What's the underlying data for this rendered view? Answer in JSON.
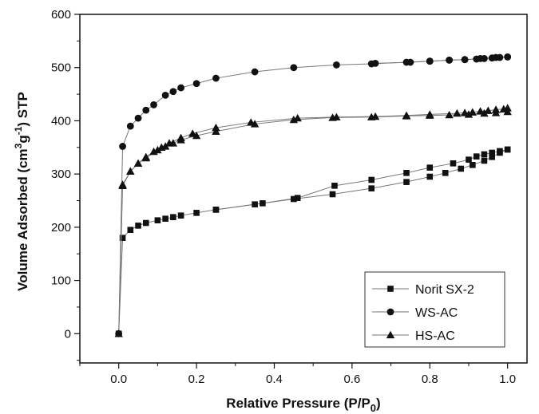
{
  "chart_data": {
    "type": "line",
    "title": "",
    "xlabel": "Relative Pressure (P/P",
    "xlabel_sub": "0",
    "xlabel_end": ")",
    "ylabel_parts": {
      "a": "Volume Adsorbed (cm",
      "sup1": "3",
      "b": "g",
      "sup2": "-1",
      "c": ") STP"
    },
    "xlim": [
      -0.1,
      1.05
    ],
    "ylim": [
      -55,
      600
    ],
    "xticks": [
      "0.0",
      "0.2",
      "0.4",
      "0.6",
      "0.8",
      "1.0"
    ],
    "xtick_values": [
      0.0,
      0.2,
      0.4,
      0.6,
      0.8,
      1.0
    ],
    "yticks": [
      "0",
      "100",
      "200",
      "300",
      "400",
      "500",
      "600"
    ],
    "ytick_values": [
      0,
      100,
      200,
      300,
      400,
      500,
      600
    ],
    "grid": false,
    "legend_position": "bottom-right",
    "line_color": "#777777",
    "marker_color": "#111111",
    "series": [
      {
        "name": "Norit SX-2",
        "marker": "square",
        "adsorption": [
          [
            0.0,
            0
          ],
          [
            0.01,
            180
          ],
          [
            0.03,
            195
          ],
          [
            0.05,
            203
          ],
          [
            0.07,
            208
          ],
          [
            0.1,
            213
          ],
          [
            0.12,
            216
          ],
          [
            0.14,
            219
          ],
          [
            0.16,
            222
          ],
          [
            0.2,
            227
          ],
          [
            0.25,
            233
          ],
          [
            0.35,
            243
          ],
          [
            0.45,
            253
          ],
          [
            0.55,
            262
          ],
          [
            0.65,
            273
          ],
          [
            0.74,
            285
          ],
          [
            0.8,
            295
          ],
          [
            0.84,
            302
          ],
          [
            0.88,
            310
          ],
          [
            0.91,
            317
          ],
          [
            0.94,
            325
          ],
          [
            0.96,
            332
          ],
          [
            0.98,
            340
          ],
          [
            1.0,
            346
          ]
        ],
        "desorption": [
          [
            1.0,
            346
          ],
          [
            0.98,
            343
          ],
          [
            0.96,
            340
          ],
          [
            0.94,
            337
          ],
          [
            0.92,
            333
          ],
          [
            0.9,
            327
          ],
          [
            0.86,
            320
          ],
          [
            0.8,
            312
          ],
          [
            0.74,
            302
          ],
          [
            0.65,
            289
          ],
          [
            0.555,
            278
          ],
          [
            0.46,
            255
          ],
          [
            0.37,
            245
          ],
          [
            0.25,
            233
          ]
        ]
      },
      {
        "name": "WS-AC",
        "marker": "circle",
        "adsorption": [
          [
            0.0,
            0
          ],
          [
            0.01,
            352
          ],
          [
            0.03,
            390
          ],
          [
            0.05,
            405
          ],
          [
            0.07,
            420
          ],
          [
            0.09,
            430
          ],
          [
            0.12,
            448
          ],
          [
            0.14,
            455
          ],
          [
            0.16,
            462
          ],
          [
            0.2,
            470
          ],
          [
            0.25,
            480
          ],
          [
            0.35,
            492
          ],
          [
            0.45,
            500
          ],
          [
            0.56,
            505
          ],
          [
            0.65,
            507
          ],
          [
            0.74,
            510
          ],
          [
            0.8,
            512
          ],
          [
            0.85,
            514
          ],
          [
            0.89,
            515
          ],
          [
            0.92,
            516
          ],
          [
            0.94,
            517
          ],
          [
            0.96,
            518
          ],
          [
            0.98,
            519
          ],
          [
            1.0,
            520
          ]
        ],
        "desorption": [
          [
            1.0,
            520
          ],
          [
            0.97,
            519
          ],
          [
            0.93,
            517
          ],
          [
            0.89,
            515
          ],
          [
            0.85,
            514
          ],
          [
            0.8,
            512
          ],
          [
            0.75,
            510
          ],
          [
            0.66,
            508
          ]
        ]
      },
      {
        "name": "HS-AC",
        "marker": "triangle",
        "adsorption": [
          [
            0.0,
            0
          ],
          [
            0.01,
            278
          ],
          [
            0.03,
            305
          ],
          [
            0.05,
            320
          ],
          [
            0.07,
            330
          ],
          [
            0.1,
            345
          ],
          [
            0.12,
            352
          ],
          [
            0.14,
            358
          ],
          [
            0.16,
            364
          ],
          [
            0.2,
            372
          ],
          [
            0.25,
            380
          ],
          [
            0.35,
            394
          ],
          [
            0.45,
            402
          ],
          [
            0.55,
            406
          ],
          [
            0.65,
            407
          ],
          [
            0.74,
            409
          ],
          [
            0.8,
            410
          ],
          [
            0.85,
            411
          ],
          [
            0.9,
            412
          ],
          [
            0.94,
            414
          ],
          [
            0.97,
            415
          ],
          [
            1.0,
            417
          ]
        ],
        "desorption": [
          [
            1.0,
            424
          ],
          [
            0.99,
            422
          ],
          [
            0.97,
            421
          ],
          [
            0.95,
            419
          ],
          [
            0.93,
            418
          ],
          [
            0.91,
            416
          ],
          [
            0.89,
            415
          ],
          [
            0.87,
            414
          ],
          [
            0.8,
            412
          ],
          [
            0.74,
            410
          ],
          [
            0.66,
            408
          ],
          [
            0.56,
            407
          ],
          [
            0.46,
            405
          ],
          [
            0.34,
            397
          ],
          [
            0.25,
            387
          ],
          [
            0.19,
            376
          ],
          [
            0.16,
            368
          ],
          [
            0.13,
            358
          ],
          [
            0.11,
            350
          ],
          [
            0.09,
            342
          ],
          [
            0.07,
            332
          ],
          [
            0.05,
            320
          ],
          [
            0.03,
            305
          ],
          [
            0.01,
            280
          ]
        ]
      }
    ]
  }
}
